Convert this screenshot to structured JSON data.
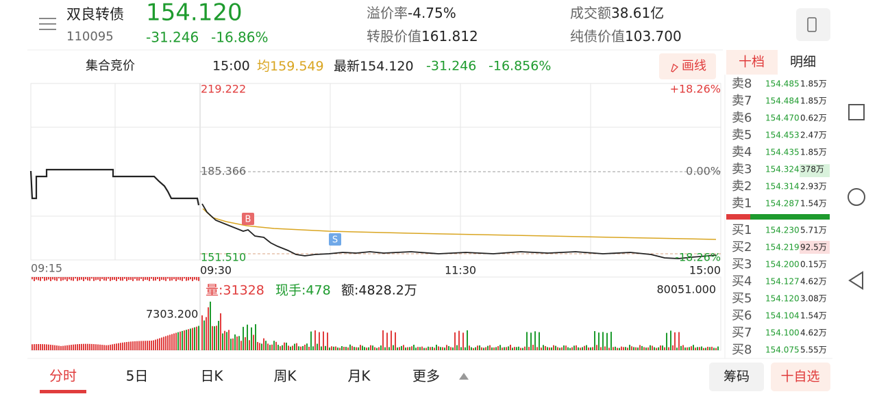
{
  "header": {
    "name": "双良转债",
    "code": "110095",
    "price": "154.120",
    "change": "-31.246",
    "change_pct": "-16.86%",
    "stats": [
      {
        "label": "溢价率",
        "value": "-4.75%"
      },
      {
        "label": "转股价值",
        "value": "161.812"
      },
      {
        "label": "成交额",
        "value": "38.61亿"
      },
      {
        "label": "纯债价值",
        "value": "103.700"
      }
    ]
  },
  "info_bar": {
    "session": "集合竞价",
    "time": "15:00",
    "avg_label": "均",
    "avg": "159.549",
    "last_label": "最新",
    "last": "154.120",
    "change": "-31.246",
    "change_pct": "-16.856%",
    "draw_button": "画线"
  },
  "price_chart": {
    "top": "219.222",
    "top_pct": "+18.26%",
    "mid": "185.366",
    "mid_pct": "0.00%",
    "bottom": "151.510",
    "bottom_pct": "-18.26%",
    "times": [
      "09:15",
      "09:30",
      "11:30",
      "15:00"
    ],
    "markers": [
      "B",
      "S"
    ]
  },
  "volume_chart": {
    "volume": "量:31328",
    "current": "现手:478",
    "amount": "额:4828.2万",
    "max": "80051.000",
    "auction_max": "7303.200"
  },
  "order_book": {
    "tabs": [
      "十档",
      "明细"
    ],
    "sell": [
      {
        "label": "卖8",
        "price": "154.485",
        "volume": "1.85万"
      },
      {
        "label": "卖7",
        "price": "154.484",
        "volume": "1.85万"
      },
      {
        "label": "卖6",
        "price": "154.470",
        "volume": "0.62万"
      },
      {
        "label": "卖5",
        "price": "154.453",
        "volume": "2.47万"
      },
      {
        "label": "卖4",
        "price": "154.435",
        "volume": "1.85万"
      },
      {
        "label": "卖3",
        "price": "154.324",
        "volume": "378万"
      },
      {
        "label": "卖2",
        "price": "154.314",
        "volume": "2.93万"
      },
      {
        "label": "卖1",
        "price": "154.287",
        "volume": "1.54万"
      }
    ],
    "buy": [
      {
        "label": "买1",
        "price": "154.230",
        "volume": "5.71万"
      },
      {
        "label": "买2",
        "price": "154.219",
        "volume": "92.5万"
      },
      {
        "label": "买3",
        "price": "154.200",
        "volume": "0.15万"
      },
      {
        "label": "买4",
        "price": "154.127",
        "volume": "4.62万"
      },
      {
        "label": "买5",
        "price": "154.120",
        "volume": "3.08万"
      },
      {
        "label": "买6",
        "price": "154.104",
        "volume": "1.54万"
      },
      {
        "label": "买7",
        "price": "154.100",
        "volume": "4.62万"
      },
      {
        "label": "买8",
        "price": "154.075",
        "volume": "5.55万"
      }
    ]
  },
  "bottom_tabs": [
    "分时",
    "5日",
    "日K",
    "周K",
    "月K",
    "更多"
  ],
  "bottom_buttons": [
    "筹码",
    "十自选"
  ]
}
